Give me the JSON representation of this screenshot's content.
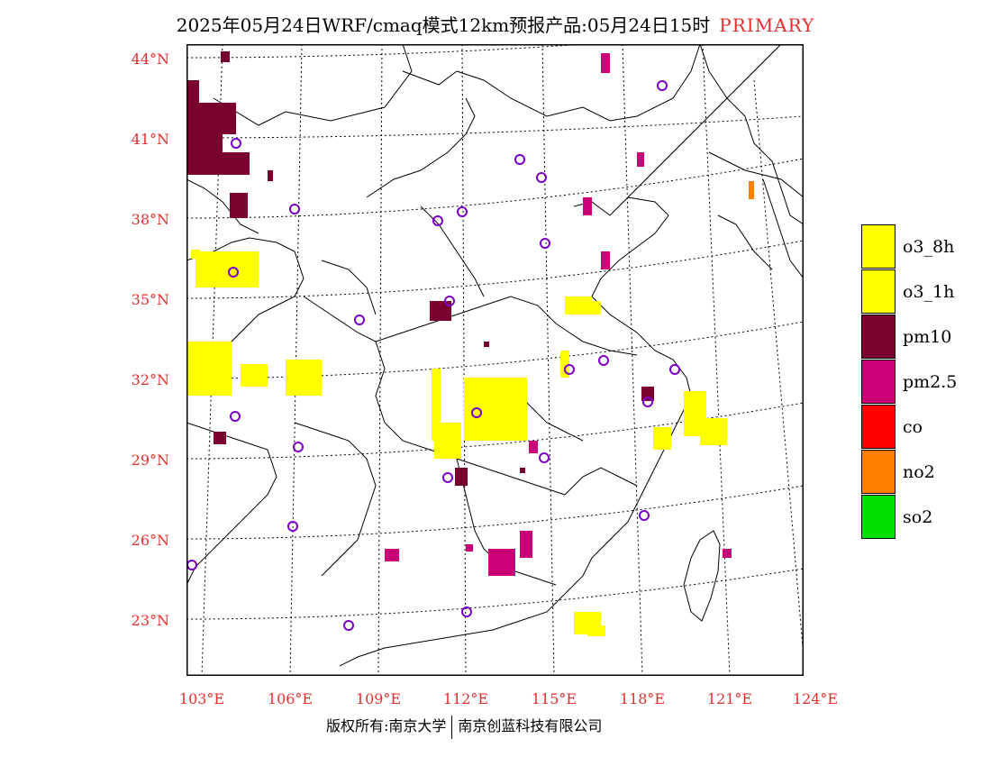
{
  "title": {
    "text": "2025年05月24日WRF/cmaq模式12km预报产品:05月24日15时",
    "tag": "PRIMARY"
  },
  "lat_labels": [
    "44°N",
    "41°N",
    "38°N",
    "35°N",
    "32°N",
    "29°N",
    "26°N",
    "23°N"
  ],
  "lon_labels": [
    "103°E",
    "106°E",
    "109°E",
    "112°E",
    "115°E",
    "118°E",
    "121°E",
    "124°E"
  ],
  "legend": [
    {
      "label": "o3_8h",
      "color": "#ffff00"
    },
    {
      "label": "o3_1h",
      "color": "#ffff00"
    },
    {
      "label": "pm10",
      "color": "#7a0030"
    },
    {
      "label": "pm2.5",
      "color": "#cc0077"
    },
    {
      "label": "co",
      "color": "#ff0000"
    },
    {
      "label": "no2",
      "color": "#ff8000"
    },
    {
      "label": "so2",
      "color": "#00e000"
    }
  ],
  "footer": {
    "left": "版权所有:南京大学",
    "right": "南京创蓝科技有限公司"
  }
}
